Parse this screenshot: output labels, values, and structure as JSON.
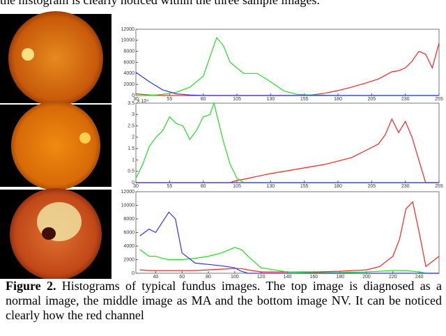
{
  "top_text": "the histogram is clearly noticed within the three sample images.",
  "caption_label": "Figure 2.",
  "caption_text": "Histograms of typical fundus images. The top image is diagnosed as a normal image, the middle image as MA and the bottom image NV. It can be noticed clearly how the red channel",
  "chart_data": [
    {
      "type": "line",
      "x": [
        30,
        40,
        50,
        60,
        70,
        80,
        85,
        90,
        95,
        100,
        110,
        120,
        130,
        140,
        150,
        160,
        170,
        180,
        190,
        200,
        210,
        220,
        225,
        230,
        235,
        240,
        245,
        250,
        255
      ],
      "xlim": [
        30,
        255
      ],
      "xticks": [
        30,
        55,
        80,
        105,
        130,
        155,
        180,
        205,
        230,
        255
      ],
      "ylim": [
        0,
        12000
      ],
      "yticks": [
        0,
        2000,
        4000,
        6000,
        8000,
        10000,
        12000
      ],
      "series": [
        {
          "color": "#ff2020",
          "values": [
            300,
            100,
            0,
            0,
            0,
            0,
            0,
            0,
            0,
            0,
            0,
            0,
            0,
            0,
            0,
            100,
            400,
            900,
            1500,
            2200,
            3000,
            4300,
            4500,
            5000,
            6200,
            8000,
            7500,
            5000,
            9500
          ]
        },
        {
          "color": "#20e020",
          "values": [
            0,
            0,
            200,
            600,
            1500,
            3500,
            7000,
            10500,
            9000,
            6000,
            4000,
            4000,
            2500,
            800,
            200,
            100,
            50,
            0,
            0,
            0,
            0,
            0,
            0,
            0,
            0,
            0,
            0,
            0,
            0
          ]
        },
        {
          "color": "#3030ff",
          "values": [
            4200,
            2500,
            1000,
            300,
            100,
            0,
            0,
            0,
            0,
            0,
            0,
            0,
            0,
            0,
            0,
            0,
            0,
            0,
            0,
            0,
            0,
            0,
            0,
            0,
            0,
            0,
            0,
            0,
            0
          ]
        }
      ]
    },
    {
      "type": "line",
      "x": [
        30,
        35,
        40,
        45,
        50,
        55,
        60,
        65,
        70,
        75,
        80,
        85,
        88,
        90,
        95,
        100,
        105,
        110,
        130,
        150,
        170,
        190,
        200,
        210,
        215,
        220,
        225,
        230,
        235,
        240,
        245,
        250,
        255
      ],
      "xlim": [
        30,
        255
      ],
      "xticks": [
        30,
        55,
        80,
        105,
        130,
        155,
        180,
        205,
        230,
        255
      ],
      "ylim": [
        0,
        3.5
      ],
      "yticks": [
        0,
        0.5,
        1,
        1.5,
        2,
        2.5,
        3,
        3.5
      ],
      "y_multiplier": "x 10⁴",
      "series": [
        {
          "color": "#ff2020",
          "values": [
            0,
            0,
            0,
            0,
            0,
            0,
            0,
            0,
            0,
            0,
            0,
            0,
            0,
            0,
            0,
            0,
            0.1,
            0.15,
            0.4,
            0.6,
            0.8,
            1.1,
            1.4,
            1.7,
            2.1,
            2.8,
            2.2,
            2.7,
            2.0,
            1.0,
            0,
            0,
            0
          ]
        },
        {
          "color": "#20e020",
          "values": [
            0.2,
            0.8,
            1.6,
            2.0,
            2.3,
            2.9,
            2.6,
            2.5,
            1.9,
            2.3,
            2.9,
            3.0,
            3.5,
            3.0,
            1.8,
            0.8,
            0.2,
            0,
            0,
            0,
            0,
            0,
            0,
            0,
            0,
            0,
            0,
            0,
            0,
            0,
            0,
            0,
            0
          ]
        },
        {
          "color": "#3030ff",
          "values": [
            0,
            0,
            0,
            0,
            0,
            0,
            0,
            0,
            0,
            0,
            0,
            0,
            0,
            0,
            0,
            0,
            0,
            0,
            0,
            0,
            0,
            0,
            0,
            0,
            0,
            0,
            0,
            0,
            0,
            0,
            0,
            0,
            0
          ]
        }
      ]
    },
    {
      "type": "line",
      "x": [
        28,
        35,
        40,
        45,
        50,
        55,
        60,
        70,
        80,
        90,
        100,
        105,
        110,
        120,
        140,
        160,
        180,
        200,
        210,
        220,
        225,
        230,
        235,
        240,
        245,
        255
      ],
      "xlim": [
        25,
        255
      ],
      "xticks": [
        40,
        60,
        80,
        100,
        120,
        140,
        160,
        180,
        200,
        220,
        240
      ],
      "ylim": [
        0,
        12000
      ],
      "yticks": [
        0,
        2000,
        4000,
        6000,
        8000,
        10000,
        12000
      ],
      "series": [
        {
          "color": "#ff2020",
          "values": [
            500,
            400,
            400,
            400,
            400,
            400,
            400,
            400,
            500,
            600,
            700,
            700,
            500,
            200,
            200,
            200,
            300,
            500,
            1000,
            2500,
            5000,
            9500,
            10500,
            6000,
            1000,
            2500
          ]
        },
        {
          "color": "#20e020",
          "values": [
            3500,
            2500,
            2500,
            2200,
            2000,
            2000,
            2000,
            2200,
            2500,
            3000,
            3800,
            3500,
            2500,
            800,
            200,
            100,
            100,
            200,
            300,
            400,
            400,
            400,
            300,
            200,
            0,
            0
          ]
        },
        {
          "color": "#3030ff",
          "values": [
            5500,
            6500,
            6000,
            7500,
            9000,
            8000,
            3000,
            1500,
            1300,
            1100,
            800,
            300,
            0,
            0,
            0,
            0,
            0,
            0,
            0,
            0,
            0,
            0,
            0,
            0,
            0,
            0
          ]
        }
      ]
    }
  ]
}
